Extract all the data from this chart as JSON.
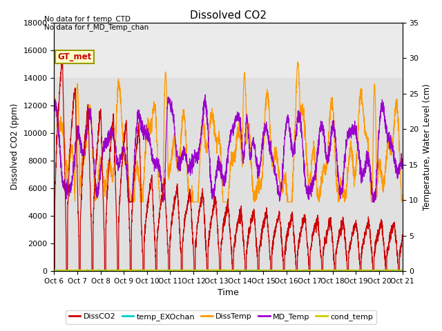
{
  "title": "Dissolved CO2",
  "xlabel": "Time",
  "ylabel_left": "Dissolved CO2 (ppm)",
  "ylabel_right": "Temperature, Water Level (cm)",
  "annotation1": "No data for f_temp_CTD",
  "annotation2": "No data for f_MD_Temp_chan",
  "gt_met_label": "GT_met",
  "x_start": 6,
  "x_end": 21,
  "x_ticks": [
    6,
    7,
    8,
    9,
    10,
    11,
    12,
    13,
    14,
    15,
    16,
    17,
    18,
    19,
    20,
    21
  ],
  "x_tick_labels": [
    "Oct 6",
    "Oct 7",
    "Oct 8",
    "Oct 9",
    "Oct 10",
    "Oct 11",
    "Oct 12",
    "Oct 13",
    "Oct 14",
    "Oct 15",
    "Oct 16",
    "Oct 17",
    "Oct 18",
    "Oct 19",
    "Oct 20",
    "Oct 21"
  ],
  "ylim_left": [
    0,
    18000
  ],
  "ylim_right": [
    0,
    35
  ],
  "yticks_left": [
    0,
    2000,
    4000,
    6000,
    8000,
    10000,
    12000,
    14000,
    16000,
    18000
  ],
  "yticks_right": [
    0,
    5,
    10,
    15,
    20,
    25,
    30,
    35
  ],
  "shaded_region": [
    14000,
    18000
  ],
  "shaded_region2": [
    0,
    14000
  ],
  "colors": {
    "DissCO2": "#cc0000",
    "temp_EXOchan": "#00cccc",
    "DissTemp": "#ff9900",
    "MD_Temp": "#9900cc",
    "cond_temp": "#cccc00",
    "gt_met_bg": "#ffffcc",
    "gt_met_border": "#999900",
    "shaded_bg_top": "#e8e8e8",
    "shaded_bg_mid": "#dddddd"
  },
  "legend_entries": [
    "DissCO2",
    "temp_EXOchan",
    "DissTemp",
    "MD_Temp",
    "cond_temp"
  ],
  "legend_colors": [
    "#cc0000",
    "#00cccc",
    "#ff9900",
    "#9900cc",
    "#cccc00"
  ]
}
